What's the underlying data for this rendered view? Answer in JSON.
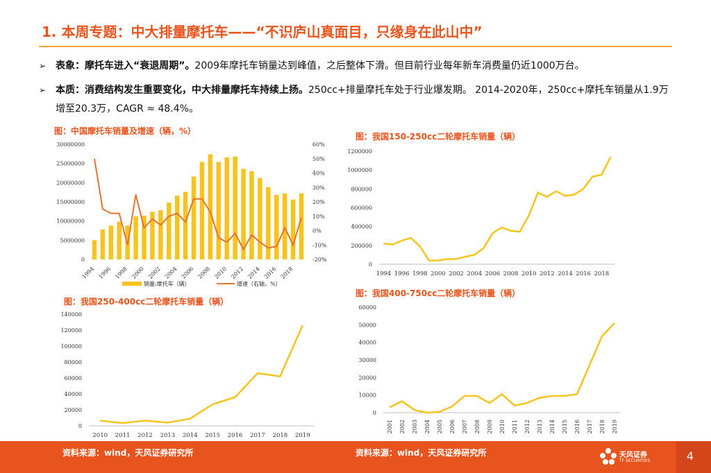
{
  "header": {
    "title": "1. 本周专题：中大排量摩托车——“不识庐山真面目，只缘身在此山中”"
  },
  "bullets": [
    {
      "bold": "表象：摩托车进入“衰退周期”。",
      "text": "2009年摩托车销量达到峰值，之后整体下滑。但目前行业每年新车消费量仍近1000万台。"
    },
    {
      "bold": "本质：消费结构发生重要变化，中大排量摩托车持续上扬。",
      "text": "250cc+排量摩托车处于行业爆发期。 2014-2020年，250cc+摩托车销量从1.9万增至20.3万，CAGR ≈ 48.4%。"
    }
  ],
  "bullet_marker": "➢",
  "colors": {
    "accent": "#e8541e",
    "bar": "#f7c41f",
    "growth": "#e8722e",
    "line": "#f7c41f",
    "rule": "#f2a23a"
  },
  "chart_data": [
    {
      "id": "chart1",
      "type": "bar",
      "title": "图：中国摩托车销量及增速（辆，%）",
      "categories": [
        "1994",
        "1995",
        "1996",
        "1997",
        "1998",
        "1999",
        "2000",
        "2001",
        "2002",
        "2003",
        "2004",
        "2005",
        "2006",
        "2007",
        "2008",
        "2009",
        "2010",
        "2011",
        "2012",
        "2013",
        "2014",
        "2015",
        "2016",
        "2017",
        "2018",
        "2019"
      ],
      "x_tick_labels": [
        "1994",
        "1996",
        "1998",
        "2000",
        "2002",
        "2004",
        "2006",
        "2008",
        "2010",
        "2012",
        "2014",
        "2016",
        "2018"
      ],
      "series": [
        {
          "name": "销量:摩托车（辆）",
          "type": "bar",
          "axis": "left",
          "values": [
            5000000,
            7800000,
            8800000,
            9800000,
            8800000,
            11200000,
            11400000,
            12400000,
            12800000,
            14800000,
            16600000,
            17600000,
            21600000,
            25400000,
            27400000,
            25400000,
            26600000,
            26800000,
            23600000,
            23000000,
            21200000,
            18800000,
            16800000,
            17200000,
            15600000,
            17200000
          ]
        },
        {
          "name": "增速（右轴，%）",
          "type": "line",
          "axis": "right",
          "values": [
            50,
            15,
            12,
            12,
            -10,
            25,
            2,
            8,
            4,
            10,
            12,
            6,
            22,
            22,
            13,
            -5,
            -8,
            -2,
            -13,
            -3,
            -8,
            -12,
            -11,
            2,
            -10,
            9
          ]
        }
      ],
      "y_left": {
        "min": 0,
        "max": 30000000,
        "ticks": [
          "30000000",
          "25000000",
          "20000000",
          "15000000",
          "10000000",
          "5000000",
          "0"
        ]
      },
      "y_right": {
        "min": -20,
        "max": 60,
        "ticks": [
          "60%",
          "50%",
          "40%",
          "30%",
          "20%",
          "10%",
          "0%",
          "-10%",
          "-20%"
        ]
      },
      "legend_position": "bottom"
    },
    {
      "id": "chart2",
      "type": "line",
      "title": "图：我国150-250cc二轮摩托车销量（辆）",
      "x": [
        "1994",
        "1995",
        "1996",
        "1997",
        "1998",
        "1999",
        "2000",
        "2001",
        "2002",
        "2003",
        "2004",
        "2005",
        "2006",
        "2007",
        "2008",
        "2009",
        "2010",
        "2011",
        "2012",
        "2013",
        "2014",
        "2015",
        "2016",
        "2017",
        "2018",
        "2019"
      ],
      "x_tick_labels": [
        "1994",
        "1996",
        "1998",
        "2000",
        "2002",
        "2004",
        "2006",
        "2008",
        "2010",
        "2012",
        "2014",
        "2016",
        "2018"
      ],
      "values": [
        220000,
        210000,
        250000,
        280000,
        190000,
        40000,
        40000,
        55000,
        55000,
        80000,
        100000,
        170000,
        330000,
        390000,
        355000,
        345000,
        520000,
        760000,
        715000,
        775000,
        725000,
        740000,
        800000,
        930000,
        950000,
        1140000
      ],
      "y_ticks": [
        "1200000",
        "1000000",
        "800000",
        "600000",
        "400000",
        "200000",
        "0"
      ],
      "ylim": [
        0,
        1200000
      ]
    },
    {
      "id": "chart3",
      "type": "line",
      "title": "图：我国250-400cc二轮摩托车销量（辆）",
      "x": [
        "2010",
        "2011",
        "2012",
        "2013",
        "2014",
        "2015",
        "2016",
        "2017",
        "2018",
        "2019"
      ],
      "x_tick_labels": [
        "2010",
        "2011",
        "2012",
        "2013",
        "2014",
        "2015",
        "2016",
        "2017",
        "2018",
        "2019"
      ],
      "values": [
        6500,
        3500,
        6500,
        4000,
        9000,
        27000,
        36000,
        66000,
        62000,
        126000
      ],
      "y_ticks": [
        "140000",
        "120000",
        "100000",
        "80000",
        "60000",
        "40000",
        "20000",
        "0"
      ],
      "ylim": [
        0,
        140000
      ]
    },
    {
      "id": "chart4",
      "type": "line",
      "title": "图：我国400-750cc二轮摩托车销量（辆）",
      "x": [
        "2001",
        "2002",
        "2003",
        "2004",
        "2005",
        "2006",
        "2007",
        "2008",
        "2009",
        "2010",
        "2011",
        "2012",
        "2013",
        "2014",
        "2015",
        "2016",
        "2017",
        "2018",
        "2019"
      ],
      "x_tick_labels": [
        "2001",
        "2002",
        "2003",
        "2004",
        "2005",
        "2006",
        "2007",
        "2008",
        "2009",
        "2010",
        "2011",
        "2012",
        "2013",
        "2014",
        "2015",
        "2016",
        "2017",
        "2018",
        "2019"
      ],
      "values": [
        3000,
        6500,
        1500,
        0,
        500,
        3500,
        9500,
        9500,
        5500,
        10500,
        4000,
        5500,
        8500,
        9500,
        9500,
        10500,
        27000,
        43500,
        51000
      ],
      "y_ticks": [
        "60000",
        "50000",
        "40000",
        "30000",
        "20000",
        "10000",
        "0"
      ],
      "ylim": [
        0,
        60000
      ]
    }
  ],
  "footer": {
    "source_left": "资料来源：wind，天风证券研究所",
    "source_right": "资料来源：wind，天风证券研究所",
    "logo_name": "天风证券",
    "logo_en": "TF SECURITIES",
    "page_number": "4"
  }
}
